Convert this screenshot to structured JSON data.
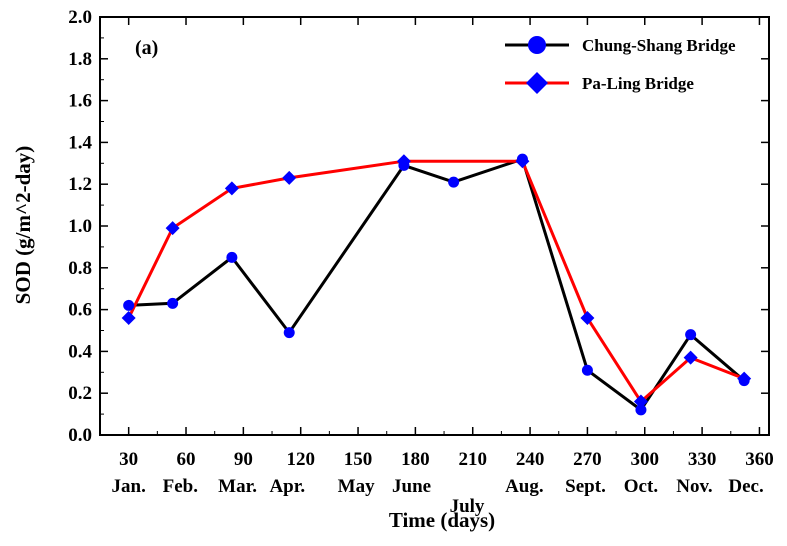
{
  "chart_data": {
    "type": "line",
    "panel_label": "(a)",
    "xlabel": "Time (days)",
    "ylabel": "SOD (g/m^2-day)",
    "xlim": [
      15,
      365
    ],
    "ylim": [
      0,
      2.0
    ],
    "x_ticks": [
      30,
      60,
      90,
      120,
      150,
      180,
      210,
      240,
      270,
      300,
      330,
      360
    ],
    "y_ticks": [
      "0.0",
      "0.2",
      "0.4",
      "0.6",
      "0.8",
      "1.0",
      "1.2",
      "1.4",
      "1.6",
      "1.8",
      "2.0"
    ],
    "month_labels": [
      {
        "label": "Jan.",
        "x": 30,
        "row": 1
      },
      {
        "label": "Feb.",
        "x": 57,
        "row": 1
      },
      {
        "label": "Mar.",
        "x": 87,
        "row": 1
      },
      {
        "label": "Apr.",
        "x": 113,
        "row": 1
      },
      {
        "label": "May",
        "x": 149,
        "row": 1
      },
      {
        "label": "June",
        "x": 178,
        "row": 1
      },
      {
        "label": "July",
        "x": 207,
        "row": 2
      },
      {
        "label": "Aug.",
        "x": 237,
        "row": 1
      },
      {
        "label": "Sept.",
        "x": 269,
        "row": 1
      },
      {
        "label": "Oct.",
        "x": 298,
        "row": 1
      },
      {
        "label": "Nov.",
        "x": 326,
        "row": 1
      },
      {
        "label": "Dec.",
        "x": 353,
        "row": 1
      }
    ],
    "grid": false,
    "legend_position": "top-right",
    "series": [
      {
        "name": "Chung-Shang Bridge",
        "color": "#000000",
        "marker": "circle",
        "marker_color": "#0000ff",
        "x": [
          30,
          53,
          84,
          114,
          174,
          200,
          236,
          270,
          298,
          324,
          352
        ],
        "y": [
          0.62,
          0.63,
          0.85,
          0.49,
          1.29,
          1.21,
          1.32,
          0.31,
          0.12,
          0.48,
          0.26
        ]
      },
      {
        "name": "Pa-Ling Bridge",
        "color": "#ff0000",
        "marker": "diamond",
        "marker_color": "#0000ff",
        "x": [
          30,
          53,
          84,
          114,
          174,
          236,
          270,
          298,
          324,
          352
        ],
        "y": [
          0.56,
          0.99,
          1.18,
          1.23,
          1.31,
          1.31,
          0.56,
          0.16,
          0.37,
          0.27
        ]
      }
    ]
  }
}
